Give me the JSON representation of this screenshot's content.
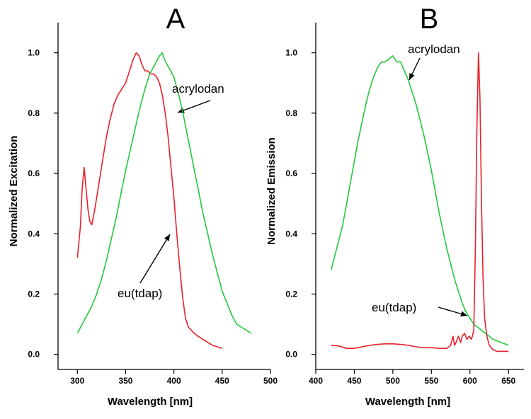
{
  "chart_data": [
    {
      "type": "line",
      "panel": "A",
      "xlabel": "Wavelength [nm]",
      "ylabel": "Normalized Excitation",
      "xlim": [
        280,
        500
      ],
      "ylim": [
        -0.05,
        1.1
      ],
      "xticks": [
        300,
        350,
        400,
        450,
        500
      ],
      "yticks": [
        0.0,
        0.2,
        0.4,
        0.6,
        0.8,
        1.0
      ],
      "xtick_labels": [
        "300",
        "350",
        "400",
        "450",
        "500"
      ],
      "ytick_labels": [
        "0.0",
        "0.2",
        "0.4",
        "0.6",
        "0.8",
        "1.0"
      ],
      "grid": false,
      "legend": "none",
      "annotations": [
        {
          "text": "acrylodan",
          "series": "acrylodan"
        },
        {
          "text": "eu(tdap)",
          "series": "eu(tdap)"
        }
      ],
      "series": [
        {
          "name": "eu(tdap)",
          "color": "#e8202a",
          "x": [
            300,
            303,
            305,
            307,
            309,
            311,
            313,
            315,
            318,
            322,
            326,
            330,
            334,
            338,
            342,
            346,
            350,
            354,
            358,
            361,
            364,
            367,
            370,
            373,
            376,
            379,
            382,
            385,
            388,
            391,
            394,
            397,
            400,
            403,
            406,
            409,
            412,
            415,
            418,
            421,
            425,
            430,
            435,
            440,
            445,
            450
          ],
          "y": [
            0.32,
            0.42,
            0.55,
            0.62,
            0.55,
            0.48,
            0.44,
            0.43,
            0.48,
            0.56,
            0.64,
            0.72,
            0.78,
            0.83,
            0.86,
            0.88,
            0.9,
            0.94,
            0.98,
            1.0,
            0.99,
            0.96,
            0.94,
            0.94,
            0.93,
            0.93,
            0.92,
            0.9,
            0.86,
            0.8,
            0.72,
            0.62,
            0.52,
            0.4,
            0.29,
            0.19,
            0.12,
            0.09,
            0.08,
            0.07,
            0.06,
            0.05,
            0.04,
            0.03,
            0.025,
            0.02
          ]
        },
        {
          "name": "acrylodan",
          "color": "#22c93a",
          "x": [
            300,
            305,
            310,
            315,
            320,
            325,
            330,
            335,
            340,
            345,
            350,
            355,
            360,
            365,
            370,
            375,
            380,
            385,
            388,
            390,
            393,
            395,
            400,
            405,
            410,
            415,
            420,
            425,
            430,
            435,
            440,
            445,
            450,
            455,
            460,
            465,
            470,
            475,
            480
          ],
          "y": [
            0.07,
            0.1,
            0.13,
            0.16,
            0.2,
            0.25,
            0.31,
            0.38,
            0.45,
            0.53,
            0.61,
            0.68,
            0.75,
            0.82,
            0.88,
            0.93,
            0.96,
            0.99,
            1.0,
            0.98,
            0.96,
            0.95,
            0.92,
            0.86,
            0.79,
            0.71,
            0.63,
            0.55,
            0.47,
            0.4,
            0.33,
            0.27,
            0.21,
            0.17,
            0.13,
            0.1,
            0.09,
            0.08,
            0.07
          ]
        }
      ]
    },
    {
      "type": "line",
      "panel": "B",
      "xlabel": "Wavelength [nm]",
      "ylabel": "Normalized Emission",
      "xlim": [
        400,
        670
      ],
      "ylim": [
        -0.05,
        1.1
      ],
      "xticks": [
        400,
        450,
        500,
        550,
        600,
        650
      ],
      "yticks": [
        0.0,
        0.2,
        0.4,
        0.6,
        0.8,
        1.0
      ],
      "xtick_labels": [
        "400",
        "450",
        "500",
        "550",
        "600",
        "650"
      ],
      "ytick_labels": [
        "0.0",
        "0.2",
        "0.4",
        "0.6",
        "0.8",
        "1.0"
      ],
      "grid": false,
      "legend": "none",
      "annotations": [
        {
          "text": "acrylodan",
          "series": "acrylodan"
        },
        {
          "text": "eu(tdap)",
          "series": "eu(tdap)"
        }
      ],
      "series": [
        {
          "name": "acrylodan",
          "color": "#22c93a",
          "x": [
            420,
            425,
            430,
            435,
            440,
            445,
            450,
            455,
            460,
            465,
            470,
            475,
            480,
            485,
            490,
            495,
            500,
            505,
            510,
            515,
            520,
            525,
            530,
            535,
            540,
            545,
            550,
            555,
            560,
            565,
            570,
            575,
            580,
            585,
            590,
            595,
            600,
            605,
            610,
            615,
            620,
            625,
            630,
            635,
            640,
            645,
            650
          ],
          "y": [
            0.28,
            0.33,
            0.38,
            0.43,
            0.5,
            0.57,
            0.64,
            0.71,
            0.77,
            0.83,
            0.88,
            0.92,
            0.95,
            0.97,
            0.97,
            0.98,
            0.99,
            0.97,
            0.97,
            0.94,
            0.91,
            0.87,
            0.83,
            0.78,
            0.73,
            0.67,
            0.61,
            0.54,
            0.47,
            0.41,
            0.35,
            0.3,
            0.25,
            0.21,
            0.17,
            0.14,
            0.12,
            0.1,
            0.09,
            0.08,
            0.07,
            0.06,
            0.05,
            0.045,
            0.04,
            0.035,
            0.03
          ]
        },
        {
          "name": "eu(tdap)",
          "color": "#e8202a",
          "x": [
            420,
            430,
            440,
            450,
            460,
            470,
            480,
            490,
            500,
            510,
            520,
            530,
            540,
            550,
            560,
            570,
            575,
            578,
            580,
            582,
            585,
            588,
            590,
            593,
            596,
            599,
            602,
            605,
            607,
            609,
            611,
            613,
            615,
            617,
            619,
            622,
            625,
            630,
            635,
            640,
            645,
            650
          ],
          "y": [
            0.03,
            0.028,
            0.02,
            0.02,
            0.025,
            0.03,
            0.033,
            0.035,
            0.035,
            0.033,
            0.03,
            0.025,
            0.022,
            0.022,
            0.02,
            0.02,
            0.03,
            0.06,
            0.03,
            0.04,
            0.06,
            0.04,
            0.06,
            0.07,
            0.05,
            0.06,
            0.05,
            0.08,
            0.35,
            0.75,
            1.0,
            0.85,
            0.5,
            0.25,
            0.12,
            0.06,
            0.03,
            0.015,
            0.01,
            0.01,
            0.01,
            0.01
          ]
        }
      ]
    }
  ]
}
